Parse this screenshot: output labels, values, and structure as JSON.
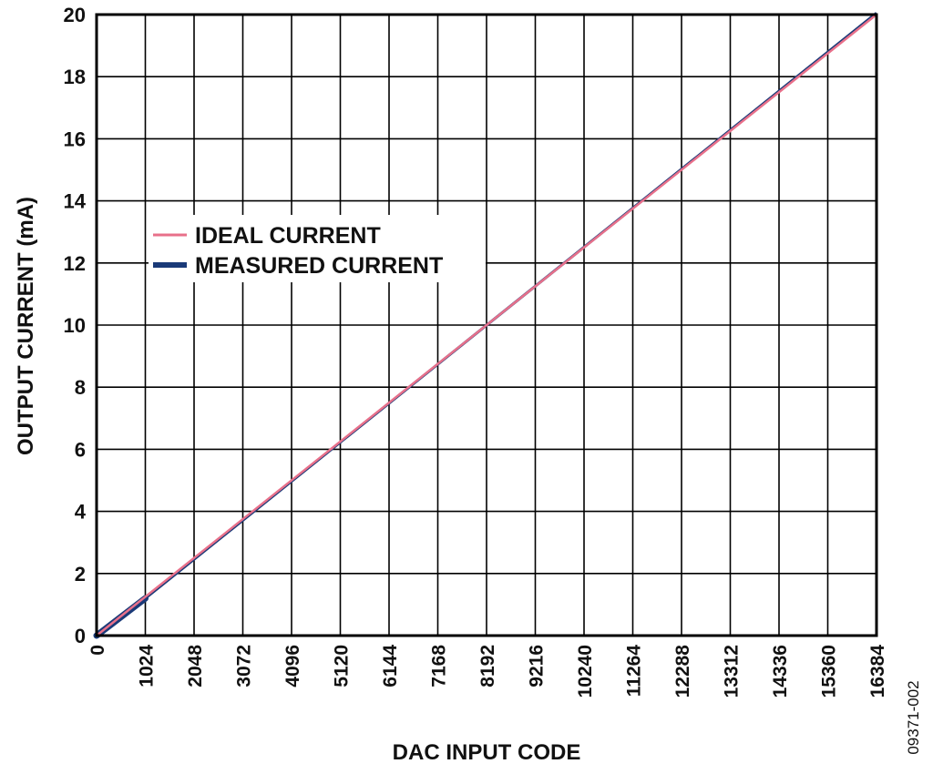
{
  "chart_data": {
    "type": "line",
    "title": "",
    "xlabel": "DAC INPUT CODE",
    "ylabel": "OUTPUT CURRENT (mA)",
    "xlim": [
      0,
      16384
    ],
    "ylim": [
      0,
      20
    ],
    "x_ticks": [
      0,
      1024,
      2048,
      3072,
      4096,
      5120,
      6144,
      7168,
      8192,
      9216,
      10240,
      11264,
      12288,
      13312,
      14336,
      15360,
      16384
    ],
    "y_ticks": [
      0,
      2,
      4,
      6,
      8,
      10,
      12,
      14,
      16,
      18,
      20
    ],
    "grid": true,
    "legend_position": "upper-left",
    "series": [
      {
        "name": "IDEAL CURRENT",
        "color": "#e8708a",
        "x": [
          0,
          16384
        ],
        "y": [
          0,
          20
        ]
      },
      {
        "name": "MEASURED CURRENT",
        "color": "#1a3a78",
        "x": [
          0,
          1024,
          16384
        ],
        "y": [
          0,
          1.2,
          20.05
        ]
      }
    ],
    "figure_code": "09371-002"
  }
}
